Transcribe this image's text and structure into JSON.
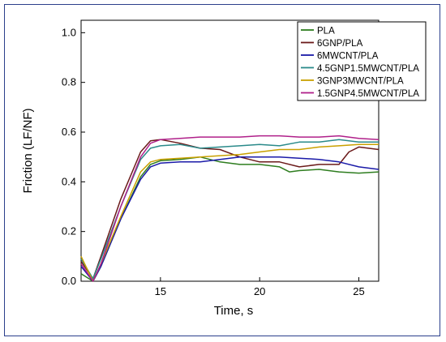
{
  "chart_data": {
    "type": "line",
    "title": "",
    "xlabel": "Time, s",
    "ylabel": "Friction (LF/NF)",
    "xlim": [
      11,
      26
    ],
    "ylim": [
      0,
      1.05
    ],
    "xticks": [
      15,
      20,
      25
    ],
    "yticks": [
      0.0,
      0.2,
      0.4,
      0.6,
      0.8,
      1.0
    ],
    "ytick_labels": [
      "0.0",
      "0.2",
      "0.4",
      "0.6",
      "0.8",
      "1.0"
    ],
    "legend_position": "top-right",
    "series": [
      {
        "name": "PLA",
        "color": "#2e7d1f",
        "x": [
          11,
          11.6,
          12,
          13,
          14,
          14.5,
          15,
          16,
          17,
          18,
          19,
          20,
          21,
          21.5,
          22,
          23,
          24,
          25,
          26
        ],
        "y": [
          0.03,
          0.0,
          0.06,
          0.25,
          0.42,
          0.47,
          0.485,
          0.49,
          0.5,
          0.48,
          0.47,
          0.47,
          0.46,
          0.44,
          0.445,
          0.45,
          0.44,
          0.435,
          0.44
        ]
      },
      {
        "name": "6GNP/PLA",
        "color": "#6b1a1a",
        "x": [
          11,
          11.6,
          12,
          13,
          14,
          14.5,
          15,
          16,
          17,
          18,
          19,
          20,
          21,
          22,
          23,
          24,
          24.5,
          25,
          26
        ],
        "y": [
          0.08,
          0.01,
          0.1,
          0.33,
          0.52,
          0.565,
          0.57,
          0.555,
          0.535,
          0.53,
          0.5,
          0.48,
          0.48,
          0.46,
          0.47,
          0.47,
          0.52,
          0.54,
          0.53
        ]
      },
      {
        "name": "6MWCNT/PLA",
        "color": "#1a1aa8",
        "x": [
          11,
          11.6,
          12,
          13,
          14,
          14.5,
          15,
          16,
          17,
          18,
          19,
          20,
          21,
          22,
          23,
          24,
          25,
          26
        ],
        "y": [
          0.06,
          0.0,
          0.06,
          0.25,
          0.41,
          0.46,
          0.475,
          0.48,
          0.48,
          0.49,
          0.5,
          0.5,
          0.5,
          0.495,
          0.49,
          0.48,
          0.46,
          0.45
        ]
      },
      {
        "name": "4.5GNP1.5MWCNT/PLA",
        "color": "#2a8a8a",
        "x": [
          11,
          11.6,
          12,
          13,
          14,
          14.5,
          15,
          16,
          17,
          18,
          19,
          20,
          21,
          22,
          23,
          24,
          25,
          26
        ],
        "y": [
          0.09,
          0.01,
          0.09,
          0.3,
          0.49,
          0.535,
          0.545,
          0.55,
          0.535,
          0.54,
          0.545,
          0.55,
          0.545,
          0.56,
          0.56,
          0.57,
          0.56,
          0.56
        ]
      },
      {
        "name": "3GNP3MWCNT/PLA",
        "color": "#c9a000",
        "x": [
          11,
          11.6,
          12,
          13,
          14,
          14.5,
          15,
          16,
          17,
          18,
          19,
          20,
          21,
          22,
          23,
          24,
          25,
          26
        ],
        "y": [
          0.1,
          0.0,
          0.07,
          0.26,
          0.44,
          0.48,
          0.49,
          0.495,
          0.5,
          0.505,
          0.51,
          0.52,
          0.53,
          0.53,
          0.54,
          0.545,
          0.55,
          0.55
        ]
      },
      {
        "name": "1.5GNP4.5MWCNT/PLA",
        "color": "#b0208a",
        "x": [
          11,
          11.6,
          12,
          13,
          14,
          14.5,
          15,
          16,
          17,
          18,
          19,
          20,
          21,
          22,
          23,
          24,
          25,
          26
        ],
        "y": [
          0.07,
          0.0,
          0.07,
          0.3,
          0.5,
          0.555,
          0.57,
          0.575,
          0.58,
          0.58,
          0.58,
          0.585,
          0.585,
          0.58,
          0.58,
          0.585,
          0.575,
          0.57
        ]
      }
    ]
  }
}
